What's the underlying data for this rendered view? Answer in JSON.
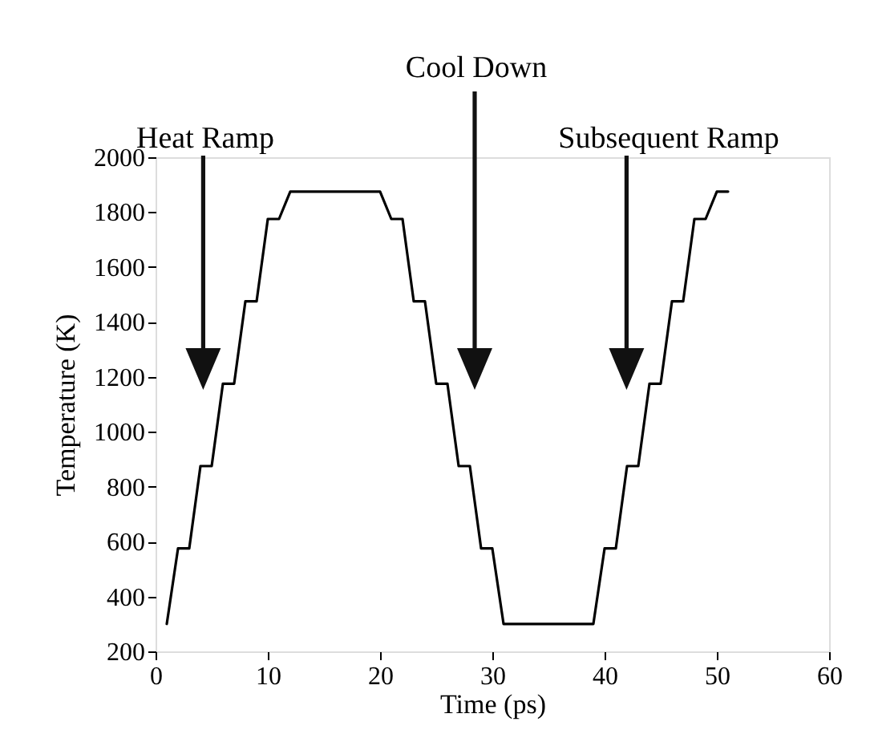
{
  "chart_data": {
    "type": "line",
    "xlabel": "Time (ps)",
    "ylabel": "Temperature (K)",
    "x": [
      1,
      2,
      3,
      4,
      5,
      6,
      7,
      8,
      9,
      10,
      11,
      12,
      20,
      21,
      22,
      23,
      24,
      25,
      26,
      27,
      28,
      29,
      30,
      31,
      39,
      40,
      41,
      42,
      43,
      44,
      45,
      46,
      47,
      48,
      49,
      50,
      51
    ],
    "series": [
      {
        "color": "#000000",
        "values": [
          300,
          575,
          575,
          875,
          875,
          1175,
          1175,
          1475,
          1475,
          1775,
          1775,
          1875,
          1875,
          1775,
          1775,
          1475,
          1475,
          1175,
          1175,
          875,
          875,
          575,
          575,
          300,
          300,
          575,
          575,
          875,
          875,
          1175,
          1175,
          1475,
          1475,
          1775,
          1775,
          1875,
          1875
        ]
      }
    ],
    "xlim": [
      0,
      60
    ],
    "xticks": [
      0,
      10,
      20,
      30,
      40,
      50,
      60
    ],
    "ylim": [
      200,
      2000
    ],
    "yticks": [
      200,
      400,
      600,
      800,
      1000,
      1200,
      1400,
      1600,
      1800,
      2000
    ],
    "grid": false,
    "marker": "none",
    "line_style": "solid",
    "annotations": [
      "Heat Ramp",
      "Cool Down",
      "Subsequent Ramp"
    ]
  }
}
